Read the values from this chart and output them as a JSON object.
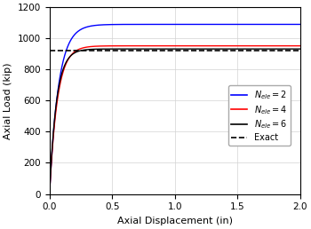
{
  "title": "",
  "xlabel": "Axial Displacement (in)",
  "ylabel": "Axial Load (kip)",
  "xlim": [
    0.0,
    2.0
  ],
  "ylim": [
    0,
    1200
  ],
  "exact_value": 920,
  "legend": [
    {
      "label": "$N_{ele}=2$",
      "color": "blue",
      "linestyle": "solid"
    },
    {
      "label": "$N_{ele}=4$",
      "color": "red",
      "linestyle": "solid"
    },
    {
      "label": "$N_{ele}=6$",
      "color": "black",
      "linestyle": "solid"
    },
    {
      "label": "Exact",
      "color": "black",
      "linestyle": "dashed"
    }
  ],
  "x_ticks": [
    0.0,
    0.5,
    1.0,
    1.5,
    2.0
  ],
  "y_ticks": [
    0,
    200,
    400,
    600,
    800,
    1000,
    1200
  ],
  "curves": [
    {
      "asymptote": 1090,
      "stiffness": 14.0,
      "color": "blue"
    },
    {
      "asymptote": 952,
      "stiffness": 16.0,
      "color": "red"
    },
    {
      "asymptote": 932,
      "stiffness": 18.0,
      "color": "black"
    }
  ]
}
